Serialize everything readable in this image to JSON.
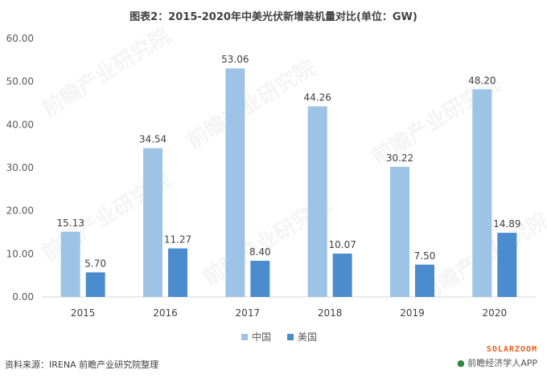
{
  "title": "图表2：2015-2020年中美光伏新增装机量对比(单位：GW)",
  "source": "资料来源：IRENA 前瞻产业研究院整理",
  "brand": {
    "logo": "SOLARZOOM",
    "sub_dot": "●",
    "sub": "前瞻经济学人APP"
  },
  "watermark": "前瞻产业研究院",
  "colors": {
    "china": "#9DC3E6",
    "usa": "#4A8CCD",
    "axis": "#D9D9D9",
    "text": "#404040"
  },
  "chart_data": {
    "type": "bar",
    "title": "图表2：2015-2020年中美光伏新增装机量对比(单位：GW)",
    "categories": [
      "2015",
      "2016",
      "2017",
      "2018",
      "2019",
      "2020"
    ],
    "series": [
      {
        "name": "中国",
        "values": [
          15.13,
          34.54,
          53.06,
          44.26,
          30.22,
          48.2
        ],
        "labels": [
          "15.13",
          "34.54",
          "53.06",
          "44.26",
          "30.22",
          "48.20"
        ]
      },
      {
        "name": "美国",
        "values": [
          5.7,
          11.27,
          8.4,
          10.07,
          7.5,
          14.89
        ],
        "labels": [
          "5.70",
          "11.27",
          "8.40",
          "10.07",
          "7.50",
          "14.89"
        ]
      }
    ],
    "ylim": [
      0,
      60
    ],
    "yticks": [
      "0.00",
      "10.00",
      "20.00",
      "30.00",
      "40.00",
      "50.00",
      "60.00"
    ],
    "xlabel": "",
    "ylabel": "",
    "grid": false,
    "legend": "bottom"
  }
}
